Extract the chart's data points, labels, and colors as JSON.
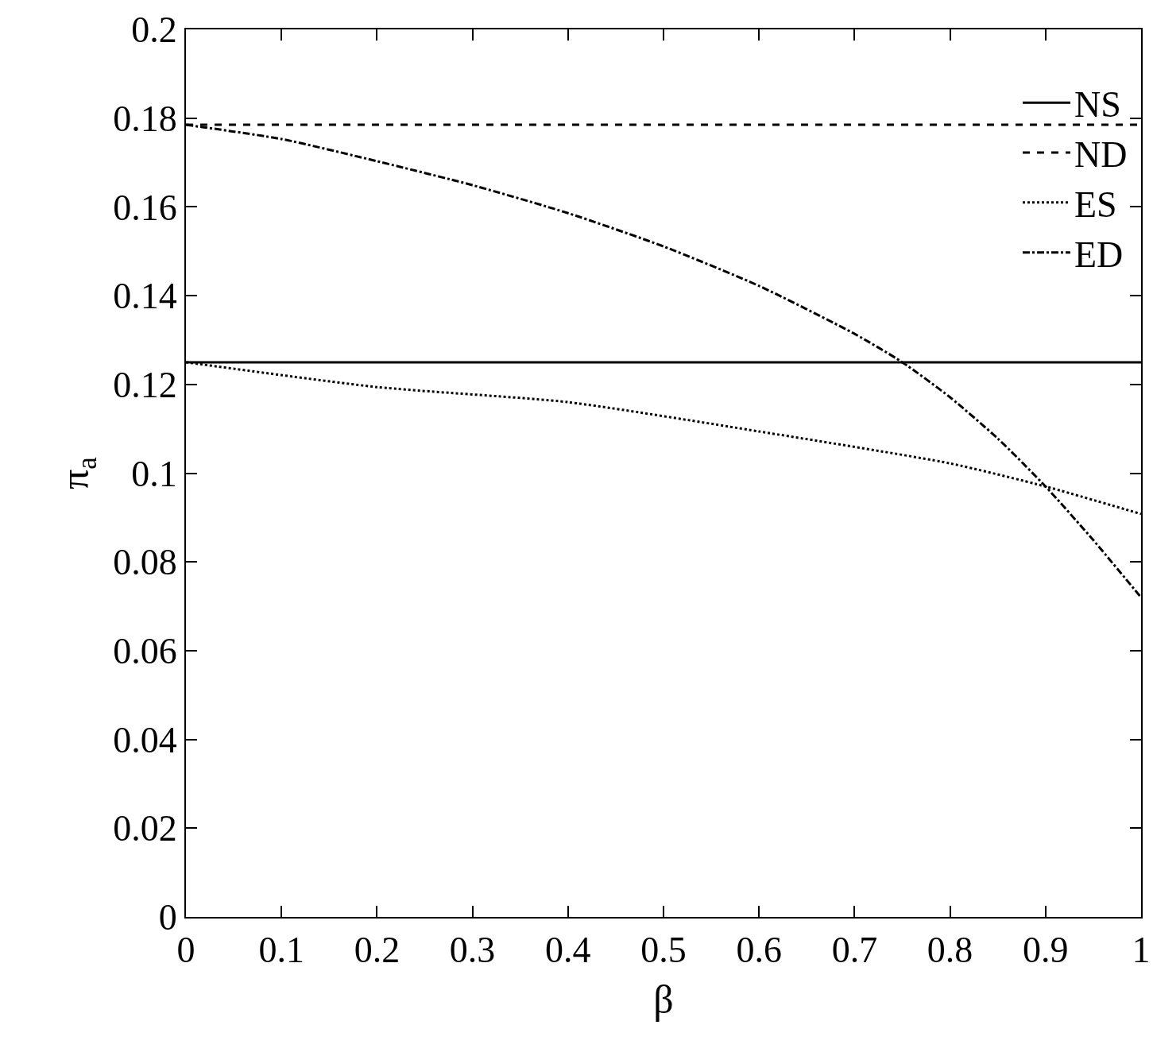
{
  "chart_data": {
    "type": "line",
    "xlabel": "β",
    "ylabel": "π$_{a}$",
    "xlim": [
      0,
      1
    ],
    "xticks": [
      0,
      0.1,
      0.2,
      0.3,
      0.4,
      0.5,
      0.6,
      0.7,
      0.8,
      0.9,
      1
    ],
    "ylim": [
      0,
      0.2
    ],
    "yticks": [
      0,
      0.02,
      0.04,
      0.06,
      0.08,
      0.1,
      0.12,
      0.14,
      0.16,
      0.18,
      0.2
    ],
    "legend": "top right",
    "grid": false,
    "marker": "none",
    "series": [
      {
        "name": "NS",
        "color": "#000000",
        "line_style": "solid",
        "x": [
          0,
          1
        ],
        "values": [
          0.125,
          0.125
        ]
      },
      {
        "name": "ND",
        "color": "#000000",
        "line_style": "dashed",
        "x": [
          0,
          1
        ],
        "values": [
          0.1785,
          0.1785
        ]
      },
      {
        "name": "ES",
        "color": "#000000",
        "line_style": "dotted",
        "x": [
          0,
          0.2,
          0.4,
          0.6,
          0.8,
          0.9,
          1
        ],
        "values": [
          0.125,
          0.1194,
          0.116,
          0.1094,
          0.1022,
          0.097,
          0.0908
        ]
      },
      {
        "name": "ED",
        "color": "#000000",
        "line_style": "dashdot",
        "x": [
          0,
          0.1,
          0.2,
          0.3,
          0.4,
          0.5,
          0.6,
          0.7,
          0.75,
          0.8,
          0.85,
          0.9,
          0.95,
          1
        ],
        "values": [
          0.1785,
          0.1753,
          0.1703,
          0.1649,
          0.1586,
          0.1511,
          0.1422,
          0.1314,
          0.125,
          0.1171,
          0.1078,
          0.097,
          0.0849,
          0.072
        ]
      }
    ]
  }
}
